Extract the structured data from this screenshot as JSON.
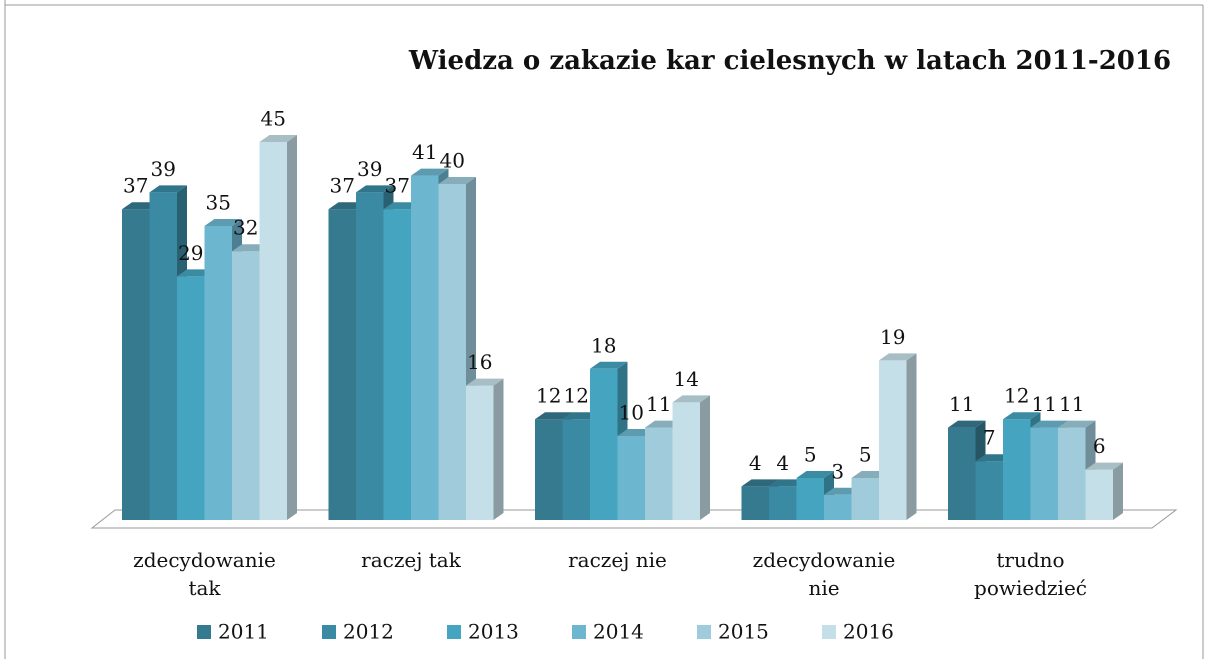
{
  "chart_data": {
    "type": "bar3d",
    "title": "Wiedza o zakazie kar cielesnych w latach 2011-2016",
    "categories": [
      "zdecydowanie tak",
      "raczej tak",
      "raczej nie",
      "zdecydowanie nie",
      "trudno powiedzieć"
    ],
    "series": [
      {
        "name": "2011",
        "color": "#367a8f",
        "values": [
          37,
          37,
          12,
          4,
          11
        ]
      },
      {
        "name": "2012",
        "color": "#3a8aa3",
        "values": [
          39,
          39,
          12,
          4,
          7
        ]
      },
      {
        "name": "2013",
        "color": "#45a5c0",
        "values": [
          29,
          37,
          18,
          5,
          12
        ]
      },
      {
        "name": "2014",
        "color": "#6db6cf",
        "values": [
          35,
          41,
          10,
          3,
          11
        ]
      },
      {
        "name": "2015",
        "color": "#9fcbdb",
        "values": [
          32,
          40,
          11,
          5,
          11
        ]
      },
      {
        "name": "2016",
        "color": "#c5dfe8",
        "values": [
          45,
          16,
          14,
          19,
          6
        ]
      }
    ],
    "legend": "bottom"
  }
}
